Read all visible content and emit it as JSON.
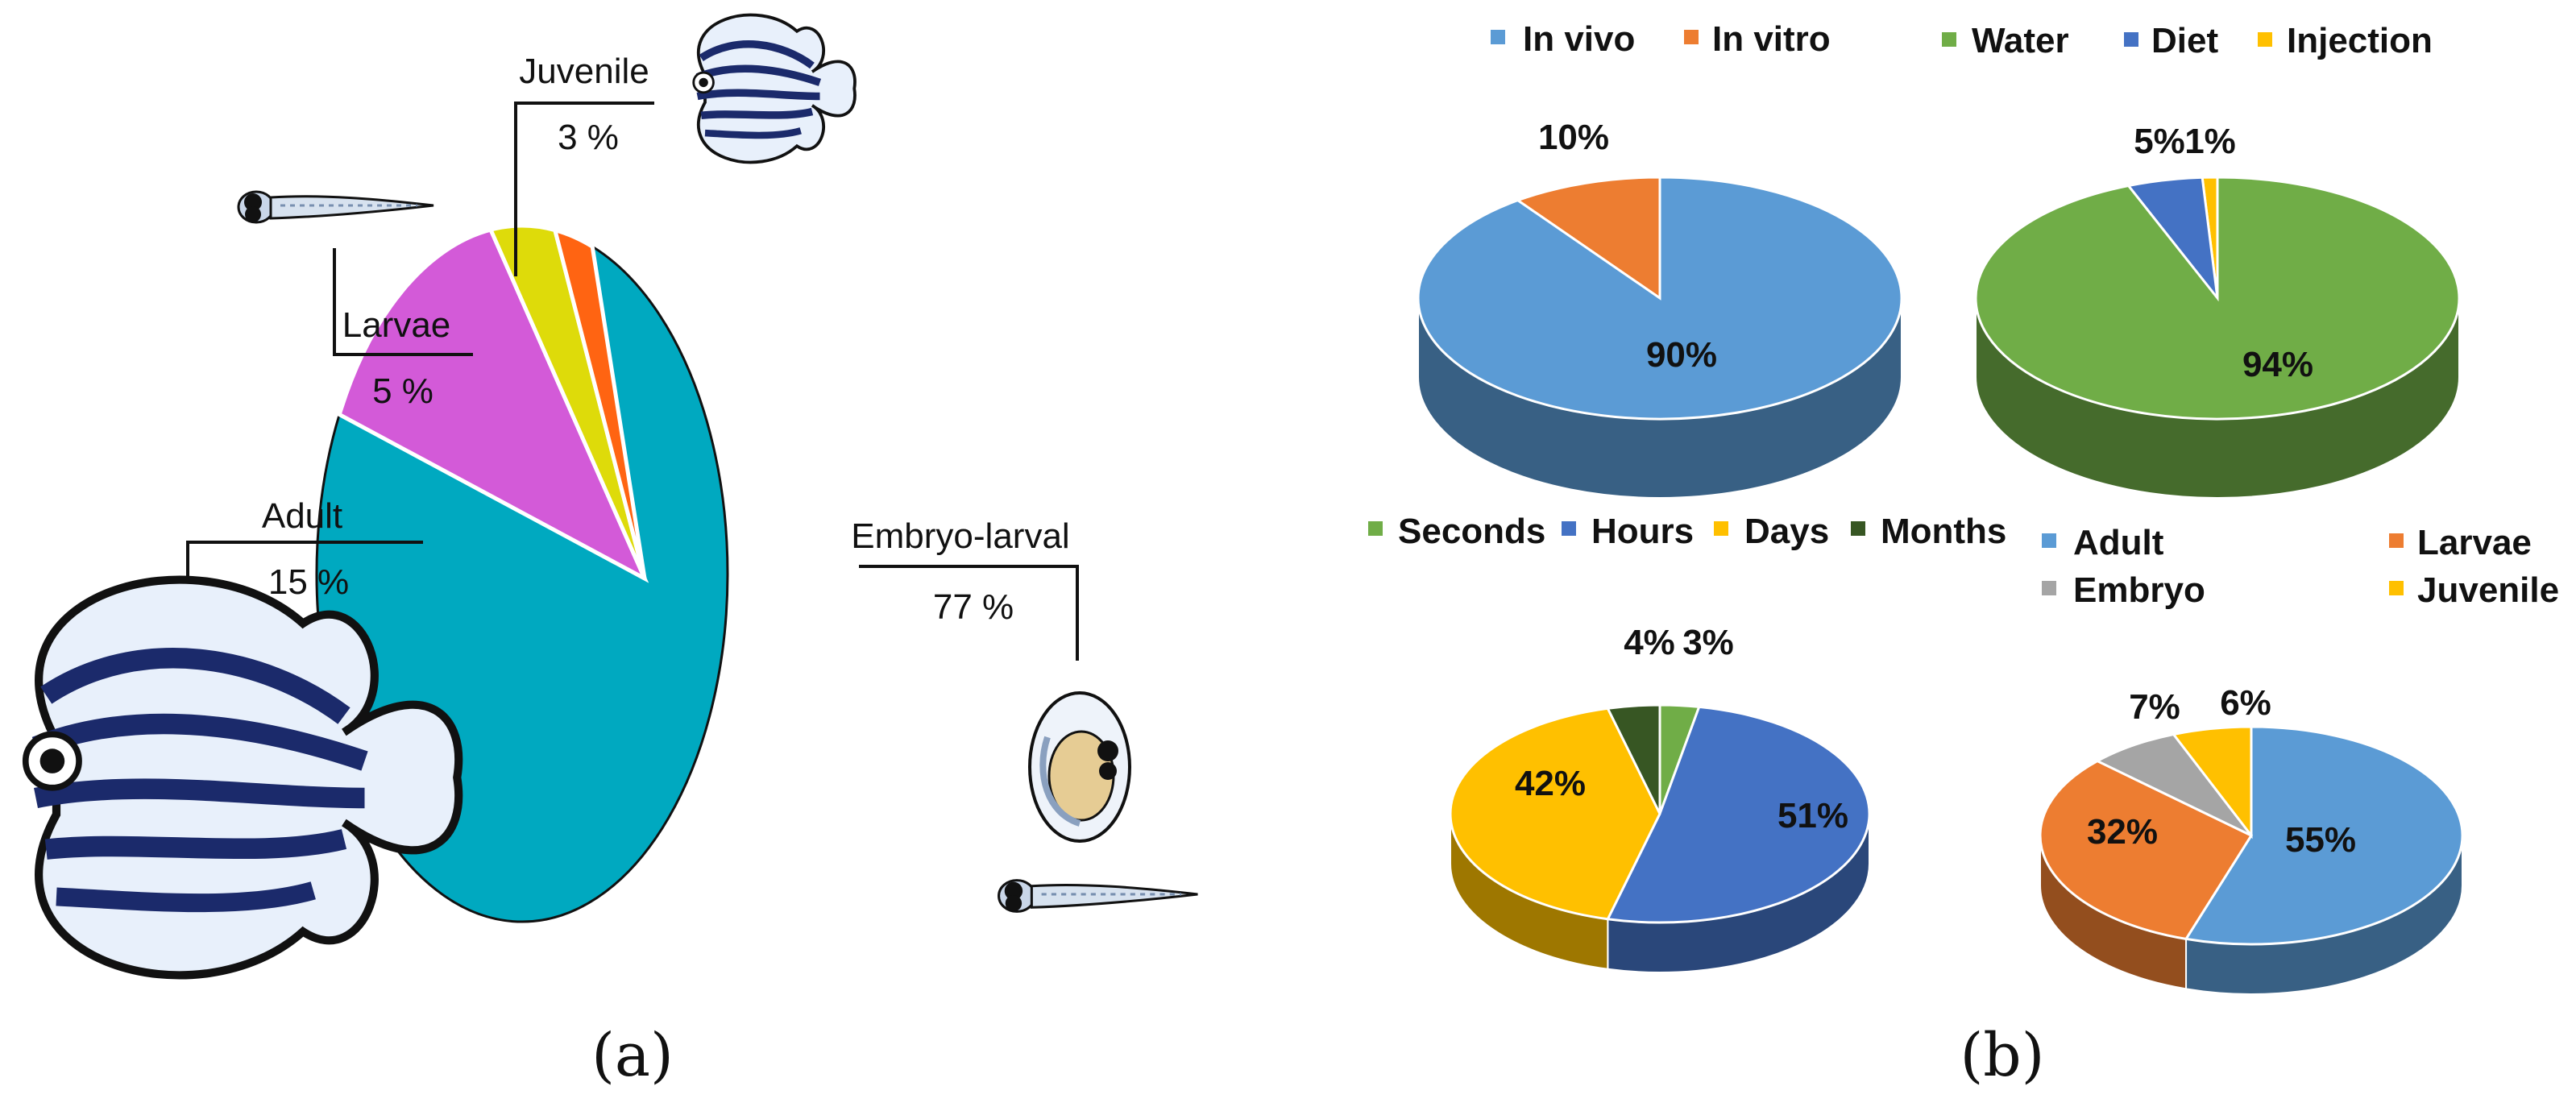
{
  "panel_a": {
    "caption": "(a)",
    "chart_data": {
      "type": "pie",
      "title": "",
      "slices": [
        {
          "key": "embryo",
          "label": "Embryo-larval",
          "value": 77,
          "value_label": "77 %",
          "color": "#00a9c0"
        },
        {
          "key": "adult",
          "label": "Adult",
          "value": 15,
          "value_label": "15 %",
          "color": "#d35ad8"
        },
        {
          "key": "larvae",
          "label": "Larvae",
          "value": 5,
          "value_label": "5 %",
          "color": "#dedb0a"
        },
        {
          "key": "juvenile",
          "label": "Juvenile",
          "value": 3,
          "value_label": "3 %",
          "color": "#ff6412"
        }
      ]
    }
  },
  "panel_b": {
    "caption": "(b)",
    "chart_data": [
      {
        "type": "pie",
        "key": "method",
        "title": "",
        "legend": "top",
        "series": [
          {
            "name": "In vivo",
            "value": 90,
            "label": "90%",
            "color": "#5b9bd5"
          },
          {
            "name": "In vitro",
            "value": 10,
            "label": "10%",
            "color": "#ed7d31"
          }
        ]
      },
      {
        "type": "pie",
        "key": "exposure",
        "title": "",
        "legend": "top",
        "series": [
          {
            "name": "Water",
            "value": 94,
            "label": "94%",
            "color": "#70ad47"
          },
          {
            "name": "Diet",
            "value": 5,
            "label": "5%",
            "color": "#4472c4"
          },
          {
            "name": "Injection",
            "value": 1,
            "label": "1%",
            "color": "#ffc000"
          }
        ]
      },
      {
        "type": "pie",
        "key": "duration",
        "title": "",
        "legend": "top",
        "series": [
          {
            "name": "Seconds",
            "value": 3,
            "label": "3%",
            "color": "#70ad47"
          },
          {
            "name": "Hours",
            "value": 51,
            "label": "51%",
            "color": "#4472c4"
          },
          {
            "name": "Days",
            "value": 42,
            "label": "42%",
            "color": "#ffc000"
          },
          {
            "name": "Months",
            "value": 4,
            "label": "4%",
            "color": "#375623"
          }
        ]
      },
      {
        "type": "pie",
        "key": "stage",
        "title": "",
        "legend": "top",
        "series": [
          {
            "name": "Adult",
            "value": 55,
            "label": "55%",
            "color": "#5b9bd5"
          },
          {
            "name": "Larvae",
            "value": 32,
            "label": "32%",
            "color": "#ed7d31"
          },
          {
            "name": "Embryo",
            "value": 7,
            "label": "7%",
            "color": "#a5a5a5"
          },
          {
            "name": "Juvenile",
            "value": 6,
            "label": "6%",
            "color": "#ffc000"
          }
        ]
      }
    ]
  }
}
